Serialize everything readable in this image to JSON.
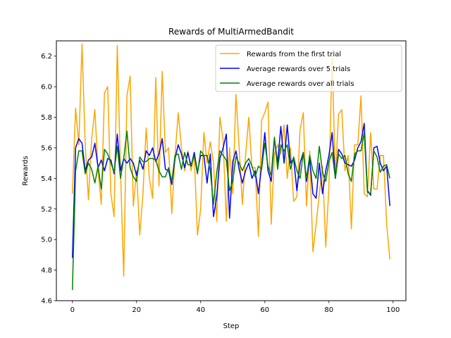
{
  "chart_data": {
    "type": "line",
    "title": "Rewards of MultiArmedBandit",
    "xlabel": "Step",
    "ylabel": "Rewards",
    "xlim": [
      -5,
      104
    ],
    "ylim": [
      4.6,
      6.3
    ],
    "xticks": [
      0,
      20,
      40,
      60,
      80,
      100
    ],
    "yticks": [
      4.6,
      4.8,
      5.0,
      5.2,
      5.4,
      5.6,
      5.8,
      6.0,
      6.2
    ],
    "grid": false,
    "legend_position": "upper right",
    "series": [
      {
        "name": "Rewards from the first trial",
        "color": "#ffa500",
        "values": [
          5.3,
          5.86,
          5.62,
          6.28,
          5.62,
          5.26,
          5.66,
          5.85,
          5.45,
          5.23,
          5.96,
          6.0,
          5.3,
          5.15,
          6.27,
          5.45,
          4.76,
          5.94,
          6.07,
          5.22,
          5.45,
          5.03,
          5.3,
          5.73,
          5.4,
          5.27,
          6.06,
          5.35,
          6.1,
          5.57,
          5.6,
          5.17,
          5.55,
          5.83,
          5.6,
          5.45,
          5.58,
          5.45,
          5.55,
          5.03,
          5.2,
          5.7,
          5.5,
          5.64,
          5.5,
          5.12,
          5.8,
          5.65,
          5.12,
          5.6,
          5.3,
          5.95,
          5.6,
          5.23,
          5.55,
          5.8,
          5.47,
          5.47,
          5.02,
          5.78,
          5.83,
          5.9,
          5.1,
          5.56,
          5.62,
          5.56,
          5.75,
          5.4,
          5.6,
          5.25,
          5.28,
          5.72,
          5.83,
          5.22,
          5.58,
          4.92,
          5.1,
          5.3,
          5.48,
          4.95,
          5.35,
          6.2,
          5.4,
          5.82,
          5.85,
          5.45,
          5.55,
          5.07,
          5.62,
          5.62,
          5.94,
          5.3,
          5.28,
          5.7,
          5.33,
          5.33,
          5.55,
          5.55,
          5.1,
          4.87
        ]
      },
      {
        "name": "Average rewards over 5 trials",
        "color": "#0000ff",
        "values": [
          4.88,
          5.6,
          5.66,
          5.63,
          5.45,
          5.52,
          5.54,
          5.63,
          5.47,
          5.52,
          5.45,
          5.53,
          5.52,
          5.43,
          5.69,
          5.45,
          5.53,
          5.5,
          5.53,
          5.5,
          5.42,
          5.52,
          5.46,
          5.58,
          5.55,
          5.6,
          5.51,
          5.56,
          5.66,
          5.46,
          5.45,
          5.36,
          5.53,
          5.62,
          5.56,
          5.47,
          5.57,
          5.48,
          5.57,
          5.44,
          5.55,
          5.55,
          5.37,
          5.56,
          5.15,
          5.28,
          5.53,
          5.6,
          5.69,
          5.14,
          5.51,
          5.58,
          5.46,
          5.37,
          5.45,
          5.5,
          5.4,
          5.45,
          5.3,
          5.48,
          5.7,
          5.45,
          5.38,
          5.66,
          5.5,
          5.74,
          5.5,
          5.75,
          5.5,
          5.53,
          5.32,
          5.5,
          5.57,
          5.38,
          5.53,
          5.3,
          5.27,
          5.5,
          5.3,
          5.45,
          5.55,
          5.7,
          5.4,
          5.59,
          5.56,
          5.5,
          5.49,
          5.48,
          5.52,
          5.6,
          5.64,
          5.76,
          5.32,
          5.29,
          5.6,
          5.61,
          5.5,
          5.45,
          5.48,
          5.22
        ]
      },
      {
        "name": "Average rewards over all trials",
        "color": "#008000",
        "values": [
          4.67,
          5.45,
          5.58,
          5.58,
          5.43,
          5.5,
          5.46,
          5.37,
          5.48,
          5.33,
          5.59,
          5.56,
          5.5,
          5.44,
          5.61,
          5.4,
          5.53,
          5.71,
          5.47,
          5.41,
          5.38,
          5.54,
          5.51,
          5.51,
          5.53,
          5.53,
          5.52,
          5.45,
          5.41,
          5.41,
          5.47,
          5.38,
          5.55,
          5.56,
          5.46,
          5.57,
          5.49,
          5.49,
          5.55,
          5.43,
          5.58,
          5.55,
          5.55,
          5.45,
          5.23,
          5.44,
          5.58,
          5.55,
          5.52,
          5.32,
          5.38,
          5.54,
          5.5,
          5.45,
          5.5,
          5.53,
          5.48,
          5.41,
          5.48,
          5.46,
          5.63,
          5.48,
          5.42,
          5.67,
          5.46,
          5.62,
          5.58,
          5.62,
          5.46,
          5.54,
          5.45,
          5.4,
          5.57,
          5.4,
          5.55,
          5.45,
          5.4,
          5.61,
          5.44,
          5.38,
          5.51,
          5.57,
          5.4,
          5.56,
          5.53,
          5.55,
          5.43,
          5.38,
          5.56,
          5.58,
          5.58,
          5.7,
          5.31,
          5.3,
          5.58,
          5.54,
          5.44,
          5.48,
          5.49,
          5.4
        ]
      }
    ]
  }
}
